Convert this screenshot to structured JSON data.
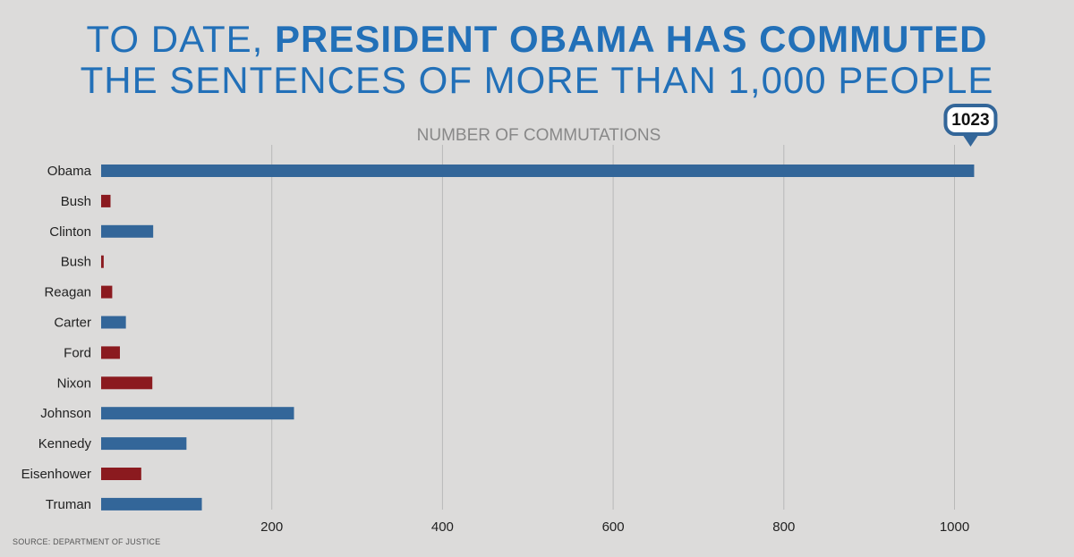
{
  "title": {
    "light": "TO DATE, ",
    "bold_line1": "PRESIDENT OBAMA HAS COMMUTED",
    "bold_line2": "THE SENTENCES OF MORE THAN 1,000 PEOPLE"
  },
  "source": "SOURCE: DEPARTMENT OF JUSTICE",
  "colors": {
    "democrat": "#336699",
    "republican": "#8b1a1f",
    "title": "#2270b8",
    "callout_border": "#336699"
  },
  "chart_data": {
    "type": "bar",
    "orientation": "horizontal",
    "title": "NUMBER OF COMMUTATIONS",
    "categories": [
      "Obama",
      "Bush",
      "Clinton",
      "Bush",
      "Reagan",
      "Carter",
      "Ford",
      "Nixon",
      "Johnson",
      "Kennedy",
      "Eisenhower",
      "Truman"
    ],
    "values": [
      1023,
      11,
      61,
      3,
      13,
      29,
      22,
      60,
      226,
      100,
      47,
      118
    ],
    "party": [
      "D",
      "R",
      "D",
      "R",
      "R",
      "D",
      "R",
      "R",
      "D",
      "D",
      "R",
      "D"
    ],
    "x_ticks": [
      200,
      400,
      600,
      800,
      1000
    ],
    "xlim": [
      0,
      1130
    ],
    "grid": true,
    "callout": {
      "label": "1023",
      "category": "Obama"
    }
  }
}
